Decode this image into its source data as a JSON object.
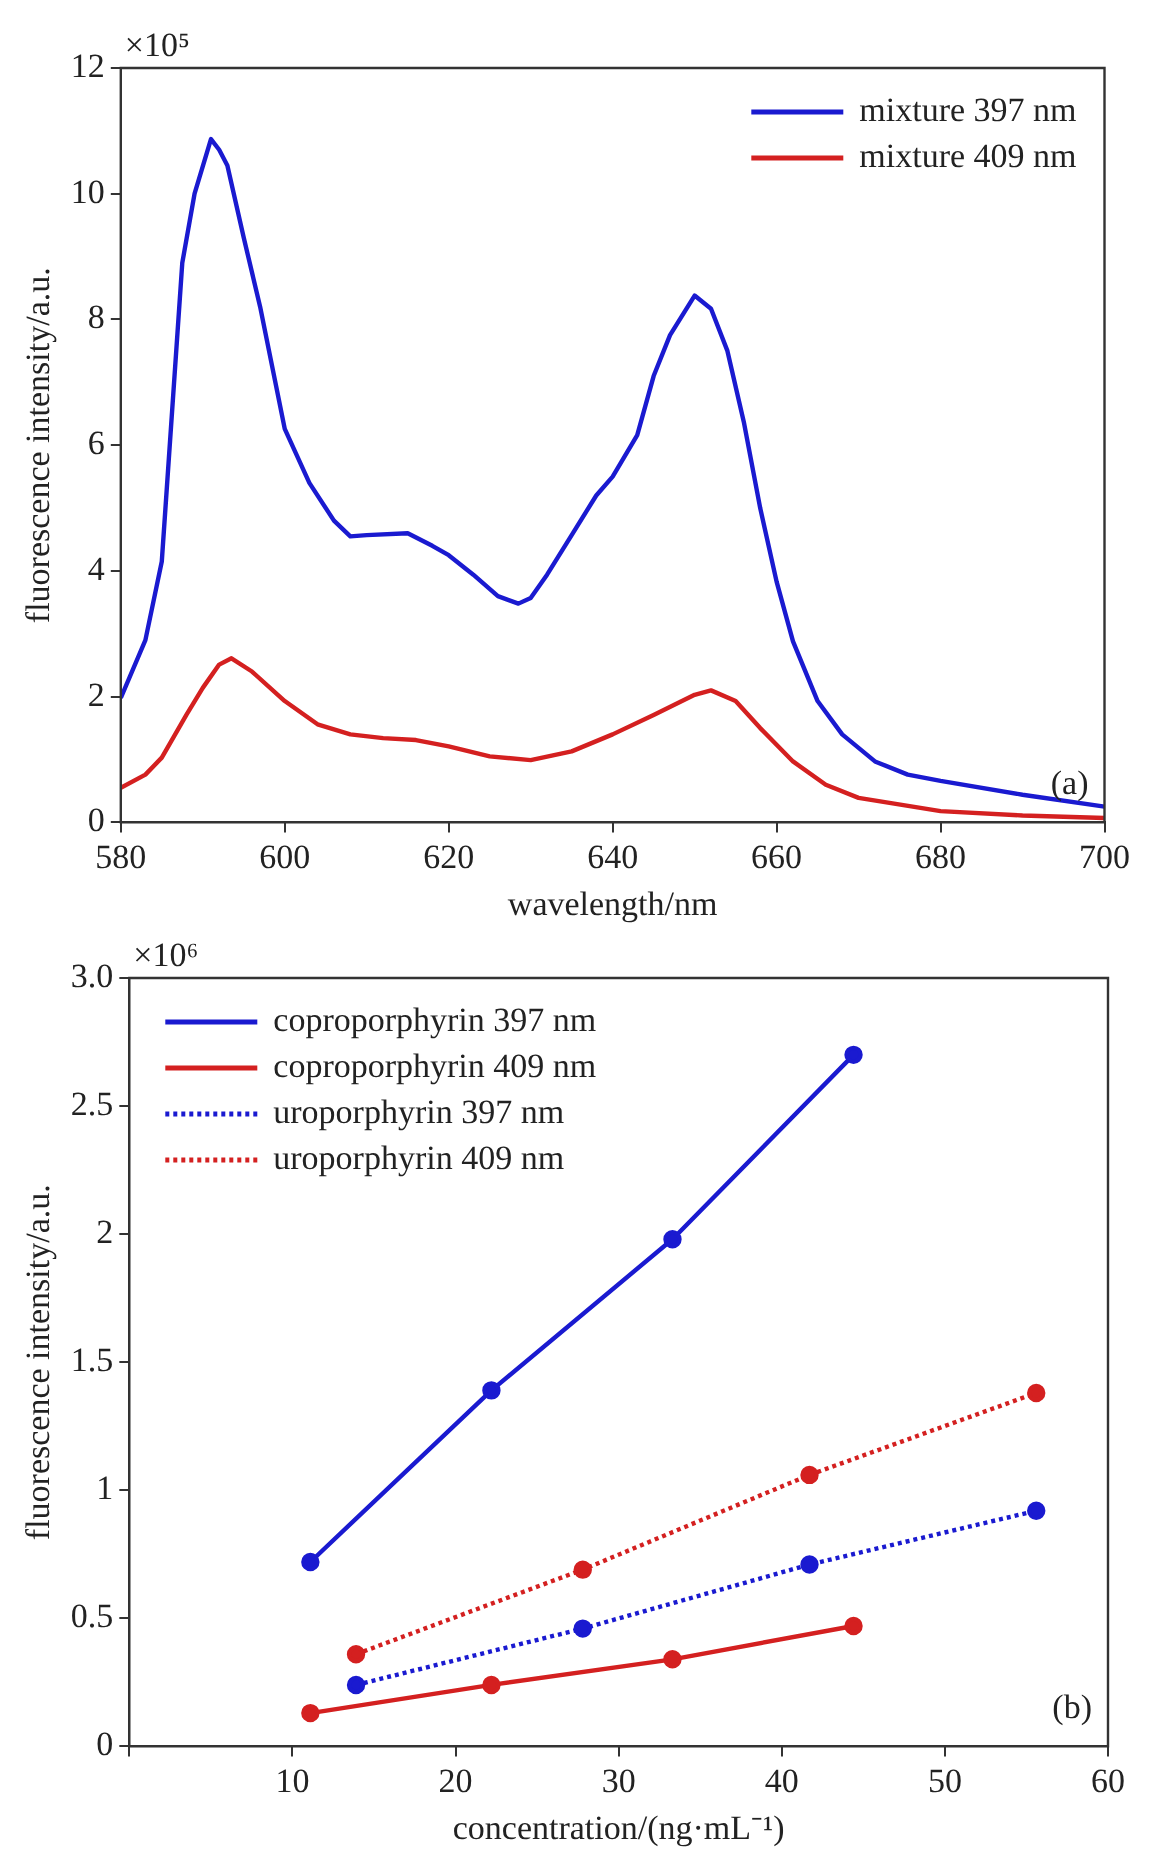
{
  "chart_data": [
    {
      "type": "line",
      "xlabel": "wavelength/nm",
      "ylabel": "fluorescence intensity/a.u.",
      "annotations": [
        "×10⁵",
        "(a)"
      ],
      "xlim": [
        580,
        700
      ],
      "xticks": [
        580,
        600,
        620,
        640,
        660,
        680,
        700
      ],
      "ylim": [
        0,
        12
      ],
      "yticks": [
        0,
        2,
        4,
        6,
        8,
        10,
        12
      ],
      "grid": false,
      "legend": "top right",
      "marker": "none",
      "line_style": "solid",
      "series": [
        {
          "name": "mixture 397 nm",
          "color": "#1a1ad0",
          "x": [
            580,
            583,
            585,
            587.5,
            589,
            591,
            592,
            593,
            595,
            597,
            600,
            603,
            606,
            608,
            610,
            615,
            618,
            620,
            623,
            626,
            628.5,
            630,
            632,
            635,
            638,
            640,
            643,
            645,
            647,
            650,
            652,
            654,
            656,
            658,
            660,
            662,
            665,
            668,
            672,
            676,
            680,
            690,
            700
          ],
          "values": [
            1.98,
            2.9,
            4.15,
            8.9,
            10.0,
            10.87,
            10.7,
            10.45,
            9.3,
            8.2,
            6.26,
            5.4,
            4.8,
            4.55,
            4.57,
            4.6,
            4.4,
            4.25,
            3.94,
            3.6,
            3.48,
            3.57,
            3.94,
            4.57,
            5.2,
            5.5,
            6.16,
            7.1,
            7.75,
            8.38,
            8.17,
            7.5,
            6.37,
            5.0,
            3.83,
            2.88,
            1.93,
            1.4,
            0.97,
            0.76,
            0.66,
            0.44,
            0.25
          ]
        },
        {
          "name": "mixture 409 nm",
          "color": "#d42020",
          "x": [
            580,
            583,
            585,
            588,
            590,
            592,
            593.5,
            596,
            600,
            604,
            608,
            612,
            616,
            620,
            625,
            630,
            635,
            640,
            645,
            650,
            652,
            655,
            658,
            662,
            666,
            670,
            680,
            690,
            700
          ],
          "values": [
            0.55,
            0.76,
            1.03,
            1.71,
            2.14,
            2.51,
            2.61,
            2.4,
            1.93,
            1.56,
            1.4,
            1.34,
            1.31,
            1.21,
            1.05,
            0.99,
            1.13,
            1.4,
            1.71,
            2.03,
            2.1,
            1.93,
            1.5,
            0.97,
            0.6,
            0.39,
            0.18,
            0.11,
            0.07
          ]
        }
      ]
    },
    {
      "type": "line",
      "xlabel": "concentration/(ng·mL⁻¹)",
      "ylabel": "fluorescence intensity/a.u.",
      "annotations": [
        "×10⁶",
        "(b)"
      ],
      "xlim": [
        0,
        60
      ],
      "xticks": [
        {
          "value": 0,
          "label": null
        },
        10,
        20,
        30,
        40,
        50,
        60
      ],
      "ylim": [
        0,
        3
      ],
      "yticks": [
        0,
        0.5,
        1,
        1.5,
        2,
        2.5,
        {
          "value": 3,
          "label": "3.0"
        }
      ],
      "grid": false,
      "legend": "top left",
      "marker": "circle",
      "series": [
        {
          "name": "coproporphyrin 397 nm",
          "color": "#1a1ad0",
          "line_style": "solid",
          "x": [
            11.1,
            22.2,
            33.3,
            44.4
          ],
          "values": [
            0.72,
            1.39,
            1.98,
            2.7
          ]
        },
        {
          "name": "coproporphyrin 409 nm",
          "color": "#d42020",
          "line_style": "solid",
          "x": [
            11.1,
            22.2,
            33.3,
            44.4
          ],
          "values": [
            0.13,
            0.24,
            0.34,
            0.47
          ]
        },
        {
          "name": "uroporphyrin 397 nm",
          "color": "#1a1ad0",
          "line_style": "dotted",
          "x": [
            13.9,
            27.8,
            41.7,
            55.6
          ],
          "values": [
            0.24,
            0.46,
            0.71,
            0.92
          ]
        },
        {
          "name": "uroporphyrin 409 nm",
          "color": "#d42020",
          "line_style": "dotted",
          "x": [
            13.9,
            27.8,
            41.7,
            55.6
          ],
          "values": [
            0.36,
            0.69,
            1.06,
            1.38
          ]
        }
      ]
    }
  ]
}
